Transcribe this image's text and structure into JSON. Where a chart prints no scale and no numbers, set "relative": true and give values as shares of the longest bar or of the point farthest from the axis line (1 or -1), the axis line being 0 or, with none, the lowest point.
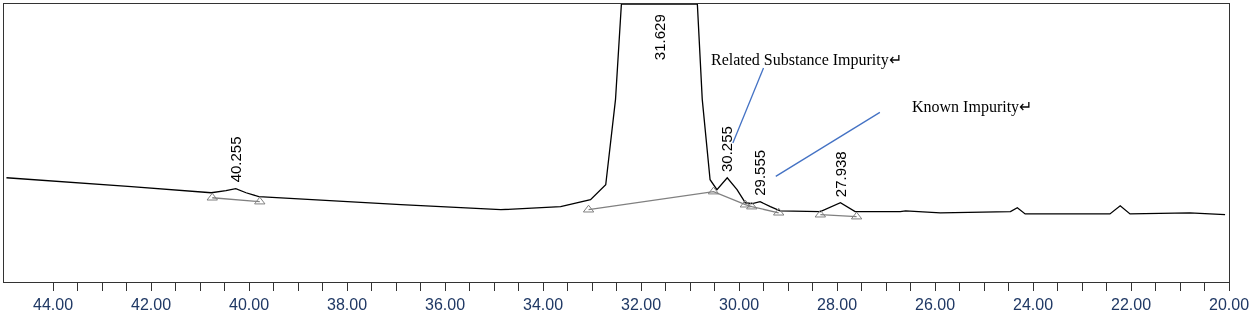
{
  "chart_data": {
    "type": "line",
    "relative": true,
    "xlim": [
      45,
      20
    ],
    "xticks": [
      {
        "value": 44,
        "label": "44.00"
      },
      {
        "value": 43.5,
        "label": null
      },
      {
        "value": 43,
        "label": null
      },
      {
        "value": 42.5,
        "label": null
      },
      {
        "value": 42,
        "label": "42.00"
      },
      {
        "value": 41.5,
        "label": null
      },
      {
        "value": 41,
        "label": null
      },
      {
        "value": 40.5,
        "label": null
      },
      {
        "value": 40,
        "label": "40.00"
      },
      {
        "value": 39.5,
        "label": null
      },
      {
        "value": 39,
        "label": null
      },
      {
        "value": 38.5,
        "label": null
      },
      {
        "value": 38,
        "label": "38.00"
      },
      {
        "value": 37.5,
        "label": null
      },
      {
        "value": 37,
        "label": null
      },
      {
        "value": 36.5,
        "label": null
      },
      {
        "value": 36,
        "label": "36.00"
      },
      {
        "value": 35.5,
        "label": null
      },
      {
        "value": 35,
        "label": null
      },
      {
        "value": 34.5,
        "label": null
      },
      {
        "value": 34,
        "label": "34.00"
      },
      {
        "value": 33.5,
        "label": null
      },
      {
        "value": 33,
        "label": null
      },
      {
        "value": 32.5,
        "label": null
      },
      {
        "value": 32,
        "label": "32.00"
      },
      {
        "value": 31.5,
        "label": null
      },
      {
        "value": 31,
        "label": null
      },
      {
        "value": 30.5,
        "label": null
      },
      {
        "value": 30,
        "label": "30.00"
      },
      {
        "value": 29.5,
        "label": null
      },
      {
        "value": 29,
        "label": null
      },
      {
        "value": 28.5,
        "label": null
      },
      {
        "value": 28,
        "label": "28.00"
      },
      {
        "value": 27.5,
        "label": null
      },
      {
        "value": 27,
        "label": null
      },
      {
        "value": 26.5,
        "label": null
      },
      {
        "value": 26,
        "label": "26.00"
      },
      {
        "value": 25.5,
        "label": null
      },
      {
        "value": 25,
        "label": null
      },
      {
        "value": 24.5,
        "label": null
      },
      {
        "value": 24,
        "label": "24.00"
      },
      {
        "value": 23.5,
        "label": null
      },
      {
        "value": 23,
        "label": null
      },
      {
        "value": 22.5,
        "label": null
      },
      {
        "value": 22,
        "label": "22.00"
      },
      {
        "value": 21.5,
        "label": null
      },
      {
        "value": 21,
        "label": null
      },
      {
        "value": 20.5,
        "label": null
      },
      {
        "value": 20,
        "label": "20.00"
      }
    ],
    "series": [
      {
        "color": "#000000",
        "marker": "none",
        "x": [
          44.95,
          42.4,
          40.77,
          40.47,
          40.27,
          40.06,
          39.8,
          36.9,
          34.86,
          33.64,
          33.03,
          32.72,
          32.52,
          32.4,
          30.85,
          30.75,
          30.59,
          30.45,
          30.24,
          30.04,
          29.87,
          29.73,
          29.57,
          29.36,
          29.16,
          28.34,
          27.93,
          27.63,
          26.71,
          26.6,
          25.89,
          24.46,
          24.32,
          24.16,
          22.43,
          22.22,
          22.02,
          20.8,
          20.08
        ],
        "values": [
          0.375,
          0.343,
          0.321,
          0.329,
          0.336,
          0.321,
          0.307,
          0.278,
          0.26,
          0.271,
          0.296,
          0.35,
          0.657,
          1.0,
          1.0,
          0.657,
          0.368,
          0.332,
          0.375,
          0.332,
          0.285,
          0.282,
          0.289,
          0.271,
          0.256,
          0.253,
          0.285,
          0.253,
          0.253,
          0.256,
          0.249,
          0.253,
          0.267,
          0.245,
          0.245,
          0.274,
          0.245,
          0.249,
          0.242
        ]
      },
      {
        "color": "#808080",
        "marker": "triangle",
        "x": [
          40.75,
          39.78,
          null,
          33.07,
          30.52,
          29.87,
          29.74,
          29.19,
          null,
          28.34,
          27.6
        ],
        "values": [
          0.303,
          0.289,
          null,
          0.26,
          0.325,
          0.278,
          0.271,
          0.249,
          null,
          0.242,
          0.235
        ]
      }
    ],
    "annotations": [
      {
        "text": "40.255",
        "x": 40.27,
        "y": 0.336
      },
      {
        "text": "31.629",
        "x": 31.63,
        "y": 1.0
      },
      {
        "text": "30.255",
        "x": 30.24,
        "y": 0.375
      },
      {
        "text": "29.555",
        "x": 29.57,
        "y": 0.289
      },
      {
        "text": "27.938",
        "x": 27.93,
        "y": 0.285
      },
      "Related Substance Impurity↵",
      "Known Impurity↵"
    ]
  }
}
